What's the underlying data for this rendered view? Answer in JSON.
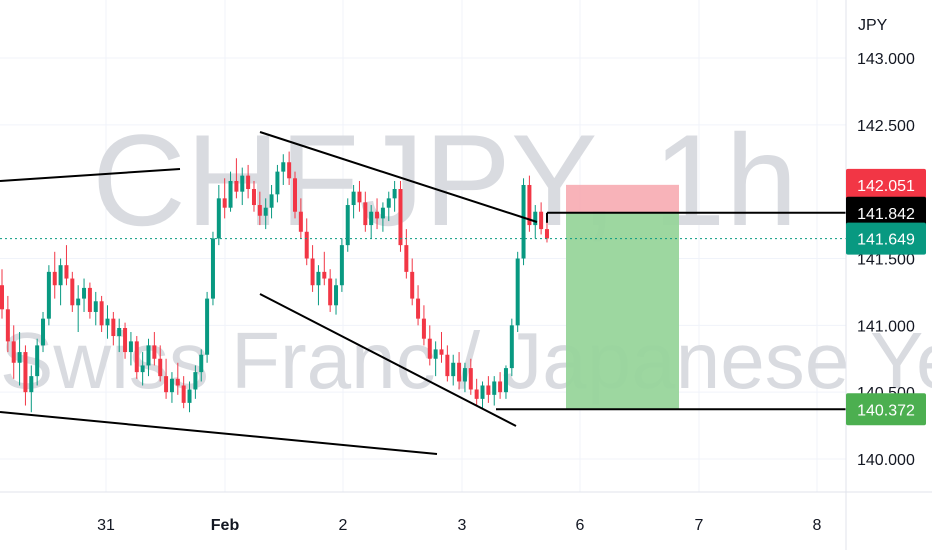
{
  "chart_data": {
    "type": "candlestick",
    "symbol_watermark": "CHFJPY, 1h",
    "description_watermark": "Swiss Franc / Japanese Yen",
    "currency": "JPY",
    "y_ticks": [
      "143.000",
      "142.500",
      "141.500",
      "141.000",
      "140.500",
      "140.000"
    ],
    "y_tick_values": [
      143.0,
      142.5,
      141.5,
      141.0,
      140.5,
      140.0
    ],
    "x_ticks": [
      "31",
      "Feb",
      "2",
      "3",
      "6",
      "7",
      "8"
    ],
    "ylim": [
      139.85,
      143.15
    ],
    "price_badges": [
      {
        "label": "142.051",
        "value": 142.051,
        "color": "#f23645",
        "role": "stop-loss"
      },
      {
        "label": "141.842",
        "value": 141.842,
        "color": "#000000",
        "role": "entry"
      },
      {
        "label": "141.649",
        "value": 141.649,
        "color": "#089981",
        "role": "last-price"
      },
      {
        "label": "140.372",
        "value": 140.372,
        "color": "#4caf50",
        "role": "take-profit"
      }
    ],
    "short_position": {
      "entry": 141.842,
      "stop": 142.051,
      "target": 140.372
    },
    "colors": {
      "up": "#089981",
      "down": "#f23645",
      "risk": "#f7a6ad",
      "reward": "#98d59b",
      "line": "#000000"
    },
    "grid": true,
    "ohlc_series": [
      [
        141.3,
        141.42,
        141.05,
        141.12
      ],
      [
        141.12,
        141.22,
        140.8,
        140.88
      ],
      [
        140.88,
        141.0,
        140.6,
        140.72
      ],
      [
        140.72,
        140.95,
        140.55,
        140.8
      ],
      [
        140.8,
        140.85,
        140.4,
        140.5
      ],
      [
        140.5,
        140.7,
        140.35,
        140.62
      ],
      [
        140.62,
        140.9,
        140.55,
        140.85
      ],
      [
        140.85,
        141.1,
        140.8,
        141.05
      ],
      [
        141.05,
        141.45,
        141.0,
        141.4
      ],
      [
        141.4,
        141.55,
        141.2,
        141.3
      ],
      [
        141.3,
        141.5,
        141.15,
        141.45
      ],
      [
        141.45,
        141.6,
        141.3,
        141.35
      ],
      [
        141.35,
        141.4,
        141.1,
        141.15
      ],
      [
        141.15,
        141.3,
        140.95,
        141.2
      ],
      [
        141.2,
        141.35,
        141.1,
        141.28
      ],
      [
        141.28,
        141.32,
        141.05,
        141.1
      ],
      [
        141.1,
        141.25,
        141.0,
        141.18
      ],
      [
        141.18,
        141.22,
        140.95,
        141.0
      ],
      [
        141.0,
        141.15,
        140.9,
        141.05
      ],
      [
        141.05,
        141.1,
        140.85,
        140.92
      ],
      [
        140.92,
        141.05,
        140.8,
        140.98
      ],
      [
        140.98,
        141.02,
        140.75,
        140.8
      ],
      [
        140.8,
        140.95,
        140.7,
        140.88
      ],
      [
        140.88,
        140.92,
        140.6,
        140.65
      ],
      [
        140.65,
        140.8,
        140.55,
        140.7
      ],
      [
        140.7,
        140.9,
        140.62,
        140.85
      ],
      [
        140.85,
        140.95,
        140.7,
        140.75
      ],
      [
        140.75,
        140.85,
        140.58,
        140.62
      ],
      [
        140.62,
        140.75,
        140.45,
        140.5
      ],
      [
        140.5,
        140.65,
        140.42,
        140.6
      ],
      [
        140.6,
        140.72,
        140.48,
        140.55
      ],
      [
        140.55,
        140.62,
        140.38,
        140.42
      ],
      [
        140.42,
        140.58,
        140.35,
        140.52
      ],
      [
        140.52,
        140.7,
        140.45,
        140.65
      ],
      [
        140.65,
        140.82,
        140.58,
        140.78
      ],
      [
        140.78,
        141.25,
        140.72,
        141.2
      ],
      [
        141.2,
        141.7,
        141.15,
        141.65
      ],
      [
        141.65,
        142.05,
        141.6,
        141.95
      ],
      [
        141.95,
        142.1,
        141.8,
        141.88
      ],
      [
        141.88,
        142.15,
        141.85,
        142.08
      ],
      [
        142.08,
        142.25,
        141.95,
        142.0
      ],
      [
        142.0,
        142.18,
        141.9,
        142.12
      ],
      [
        142.12,
        142.2,
        141.95,
        142.02
      ],
      [
        142.02,
        142.08,
        141.85,
        141.9
      ],
      [
        141.9,
        142.0,
        141.75,
        141.82
      ],
      [
        141.82,
        141.95,
        141.72,
        141.88
      ],
      [
        141.88,
        142.05,
        141.8,
        141.98
      ],
      [
        141.98,
        142.2,
        141.92,
        142.15
      ],
      [
        142.15,
        142.28,
        142.05,
        142.22
      ],
      [
        142.22,
        142.3,
        142.05,
        142.1
      ],
      [
        142.1,
        142.15,
        141.8,
        141.85
      ],
      [
        141.85,
        141.95,
        141.65,
        141.7
      ],
      [
        141.7,
        141.8,
        141.45,
        141.5
      ],
      [
        141.5,
        141.6,
        141.25,
        141.3
      ],
      [
        141.3,
        141.45,
        141.15,
        141.4
      ],
      [
        141.4,
        141.55,
        141.3,
        141.35
      ],
      [
        141.35,
        141.42,
        141.1,
        141.15
      ],
      [
        141.15,
        141.35,
        141.08,
        141.3
      ],
      [
        141.3,
        141.65,
        141.25,
        141.6
      ],
      [
        141.6,
        141.95,
        141.55,
        141.9
      ],
      [
        141.9,
        142.05,
        141.8,
        142.0
      ],
      [
        142.0,
        142.08,
        141.85,
        141.92
      ],
      [
        141.92,
        142.0,
        141.7,
        141.75
      ],
      [
        141.75,
        141.9,
        141.65,
        141.85
      ],
      [
        141.85,
        141.95,
        141.72,
        141.8
      ],
      [
        141.8,
        141.92,
        141.7,
        141.88
      ],
      [
        141.88,
        142.0,
        141.78,
        141.95
      ],
      [
        141.95,
        142.08,
        141.85,
        142.02
      ],
      [
        142.02,
        142.08,
        141.55,
        141.6
      ],
      [
        141.6,
        141.72,
        141.35,
        141.4
      ],
      [
        141.4,
        141.5,
        141.15,
        141.2
      ],
      [
        141.2,
        141.3,
        141.0,
        141.05
      ],
      [
        141.05,
        141.15,
        140.85,
        140.9
      ],
      [
        140.9,
        141.0,
        140.7,
        140.75
      ],
      [
        140.75,
        140.88,
        140.62,
        140.82
      ],
      [
        140.82,
        140.95,
        140.72,
        140.78
      ],
      [
        140.78,
        140.85,
        140.58,
        140.62
      ],
      [
        140.62,
        140.78,
        140.55,
        140.72
      ],
      [
        140.72,
        140.8,
        140.52,
        140.58
      ],
      [
        140.58,
        140.72,
        140.5,
        140.68
      ],
      [
        140.68,
        140.75,
        140.48,
        140.52
      ],
      [
        140.52,
        140.6,
        140.4,
        140.45
      ],
      [
        140.45,
        140.58,
        140.38,
        140.55
      ],
      [
        140.55,
        140.62,
        140.42,
        140.48
      ],
      [
        140.48,
        140.62,
        140.4,
        140.58
      ],
      [
        140.58,
        140.65,
        140.45,
        140.5
      ],
      [
        140.5,
        140.7,
        140.45,
        140.68
      ],
      [
        140.68,
        141.05,
        140.62,
        141.0
      ],
      [
        141.0,
        141.55,
        140.95,
        141.5
      ],
      [
        141.5,
        142.1,
        141.45,
        142.05
      ],
      [
        142.05,
        142.12,
        141.7,
        141.75
      ],
      [
        141.75,
        141.9,
        141.65,
        141.85
      ],
      [
        141.85,
        141.92,
        141.68,
        141.72
      ],
      [
        141.72,
        141.8,
        141.62,
        141.65
      ]
    ]
  }
}
